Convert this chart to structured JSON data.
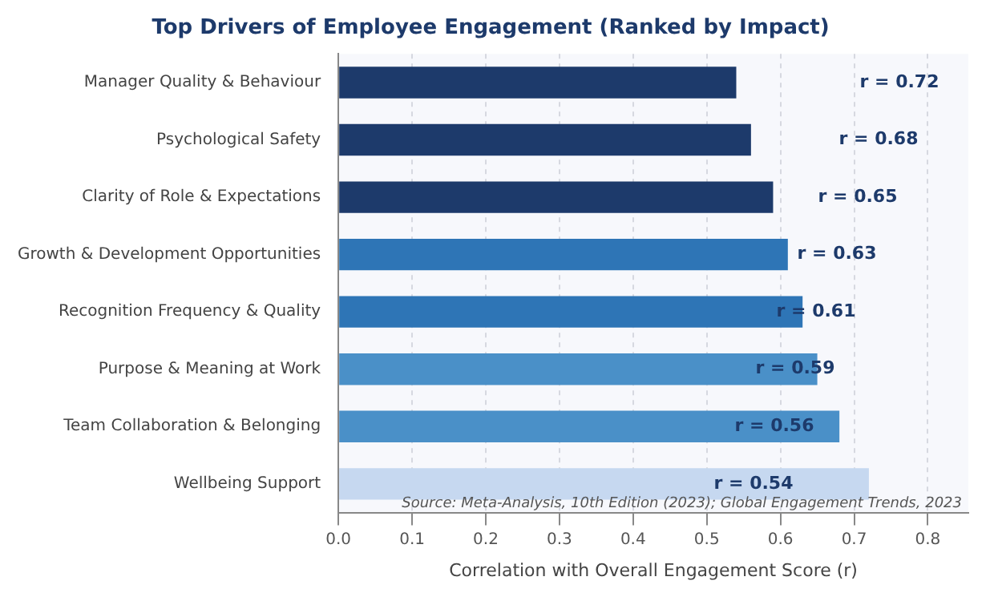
{
  "chart_data": {
    "type": "bar",
    "orientation": "horizontal",
    "title": "Top Drivers of Employee Engagement (Ranked by Impact)",
    "xlabel": "Correlation with Overall Engagement Score (r)",
    "categories": [
      "Manager Quality & Behaviour",
      "Psychological Safety",
      "Clarity of Role & Expectations",
      "Growth & Development Opportunities",
      "Recognition Frequency & Quality",
      "Purpose & Meaning at Work",
      "Team Collaboration & Belonging",
      "Wellbeing Support"
    ],
    "values": [
      0.54,
      0.56,
      0.59,
      0.61,
      0.63,
      0.65,
      0.68,
      0.72
    ],
    "colors": [
      "#1d3a6b",
      "#1d3a6b",
      "#1d3a6b",
      "#2e75b6",
      "#2e75b6",
      "#4a90c8",
      "#4a90c8",
      "#c6d8f0"
    ],
    "xlim": [
      0,
      0.855
    ],
    "xticks": [
      {
        "value": 0,
        "label": "0.0"
      },
      0.1,
      0.2,
      0.3,
      0.4,
      0.5,
      0.6,
      0.7,
      0.8
    ],
    "grid": "x",
    "legend": false,
    "annotations": [
      "r = 0.72",
      "r = 0.68",
      "r = 0.65",
      "r = 0.63",
      "r = 0.61",
      "r = 0.59",
      "r = 0.56",
      "r = 0.54",
      "Source: Meta-Analysis, 10th Edition (2023); Global Engagement Trends, 2023"
    ]
  }
}
